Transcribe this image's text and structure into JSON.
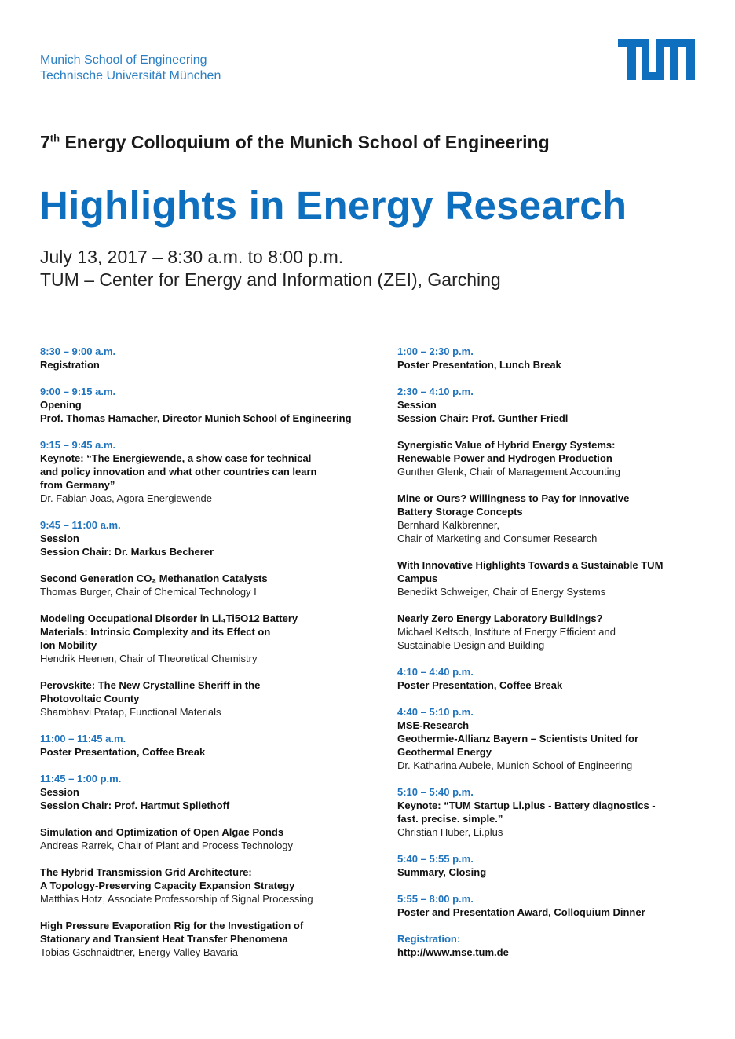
{
  "header": {
    "institution_line1": "Munich School of Engineering",
    "institution_line2": "Technische Universität München",
    "logo_text": "TUM",
    "ordinal_number": "7",
    "ordinal_suffix": "th",
    "subtitle": " Energy Colloquium of the Munich School of Engineering",
    "title": "Highlights in Energy Research",
    "date_line": "July 13, 2017 – 8:30 a.m. to 8:00 p.m.",
    "venue_line": "TUM – Center for Energy and Information (ZEI), Garching"
  },
  "colors": {
    "accent": "#0f6fbf",
    "time": "#1f74bd"
  },
  "program_left": [
    {
      "time": "8:30 – 9:00 a.m.",
      "bold": [
        "Registration"
      ],
      "text": []
    },
    {
      "time": "9:00 – 9:15 a.m.",
      "bold": [
        "Opening",
        "Prof. Thomas Hamacher, Director Munich School of Engineering"
      ],
      "text": []
    },
    {
      "time": "9:15 – 9:45 a.m.",
      "bold": [
        "Keynote: “The Energiewende, a show case for technical",
        "and policy innovation and what other countries can learn",
        "from Germany”"
      ],
      "text": [
        "Dr. Fabian Joas, Agora Energiewende"
      ]
    },
    {
      "time": "9:45 – 11:00 a.m.",
      "bold": [
        "Session",
        "Session Chair: Dr. Markus Becherer"
      ],
      "text": []
    },
    {
      "time": "",
      "bold": [
        "Second Generation CO₂ Methanation Catalysts"
      ],
      "text": [
        "Thomas Burger, Chair of Chemical Technology I"
      ]
    },
    {
      "time": "",
      "bold": [
        "Modeling Occupational Disorder in Li₄Ti5O12 Battery",
        "Materials: Intrinsic Complexity and its Effect on",
        "Ion Mobility"
      ],
      "text": [
        "Hendrik Heenen, Chair of Theoretical Chemistry"
      ]
    },
    {
      "time": "",
      "bold": [
        "Perovskite: The New Crystalline Sheriff in the",
        "Photovoltaic County"
      ],
      "text": [
        "Shambhavi Pratap, Functional Materials"
      ]
    },
    {
      "time": "11:00 – 11:45 a.m.",
      "bold": [
        "Poster Presentation, Coffee Break"
      ],
      "text": []
    },
    {
      "time": "11:45 – 1:00 p.m.",
      "bold": [
        "Session",
        "Session Chair: Prof. Hartmut Spliethoff"
      ],
      "text": []
    },
    {
      "time": "",
      "bold": [
        "Simulation and Optimization of Open Algae Ponds"
      ],
      "text": [
        "Andreas Rarrek, Chair of Plant and Process Technology"
      ]
    },
    {
      "time": "",
      "bold": [
        "The Hybrid Transmission Grid Architecture:",
        "A Topology-Preserving Capacity Expansion Strategy"
      ],
      "text": [
        "Matthias Hotz, Associate Professorship of Signal Processing"
      ]
    },
    {
      "time": "",
      "bold": [
        "High Pressure Evaporation Rig for the Investigation of",
        "Stationary and Transient Heat Transfer Phenomena"
      ],
      "text": [
        "Tobias Gschnaidtner, Energy Valley Bavaria"
      ]
    }
  ],
  "program_right": [
    {
      "time": "1:00 – 2:30 p.m.",
      "bold": [
        "Poster Presentation, Lunch Break"
      ],
      "text": []
    },
    {
      "time": "2:30 – 4:10 p.m.",
      "bold": [
        "Session",
        "Session Chair: Prof. Gunther Friedl"
      ],
      "text": []
    },
    {
      "time": "",
      "bold": [
        "Synergistic Value of Hybrid Energy Systems:",
        "Renewable Power and Hydrogen Production"
      ],
      "text": [
        "Gunther Glenk, Chair of Management Accounting"
      ]
    },
    {
      "time": "",
      "bold": [
        "Mine or Ours? Willingness to Pay for Innovative",
        "Battery Storage Concepts"
      ],
      "text": [
        "Bernhard Kalkbrenner,",
        "Chair of Marketing and Consumer Research"
      ]
    },
    {
      "time": "",
      "bold": [
        "With Innovative Highlights Towards a Sustainable TUM",
        "Campus"
      ],
      "text": [
        "Benedikt Schweiger, Chair of Energy Systems"
      ]
    },
    {
      "time": "",
      "bold": [
        "Nearly Zero Energy Laboratory Buildings?"
      ],
      "text": [
        "Michael Keltsch, Institute of Energy Efficient and",
        "Sustainable Design and Building"
      ]
    },
    {
      "time": "4:10 – 4:40 p.m.",
      "bold": [
        "Poster Presentation, Coffee Break"
      ],
      "text": []
    },
    {
      "time": "4:40 – 5:10 p.m.",
      "bold": [
        "MSE-Research",
        "Geothermie-Allianz Bayern – Scientists United for",
        "Geothermal Energy"
      ],
      "text": [
        "Dr. Katharina Aubele, Munich School of Engineering"
      ]
    },
    {
      "time": "5:10 – 5:40 p.m.",
      "bold": [
        "Keynote: “TUM Startup Li.plus - Battery diagnostics -",
        "fast. precise. simple.”"
      ],
      "text": [
        "Christian Huber, Li.plus"
      ]
    },
    {
      "time": "5:40 – 5:55 p.m.",
      "bold": [
        "Summary, Closing"
      ],
      "text": []
    },
    {
      "time": "5:55 – 8:00 p.m.",
      "bold": [
        "Poster and Presentation Award, Colloquium Dinner"
      ],
      "text": []
    },
    {
      "time": "Registration:",
      "bold": [
        "http://www.mse.tum.de"
      ],
      "text": []
    }
  ]
}
